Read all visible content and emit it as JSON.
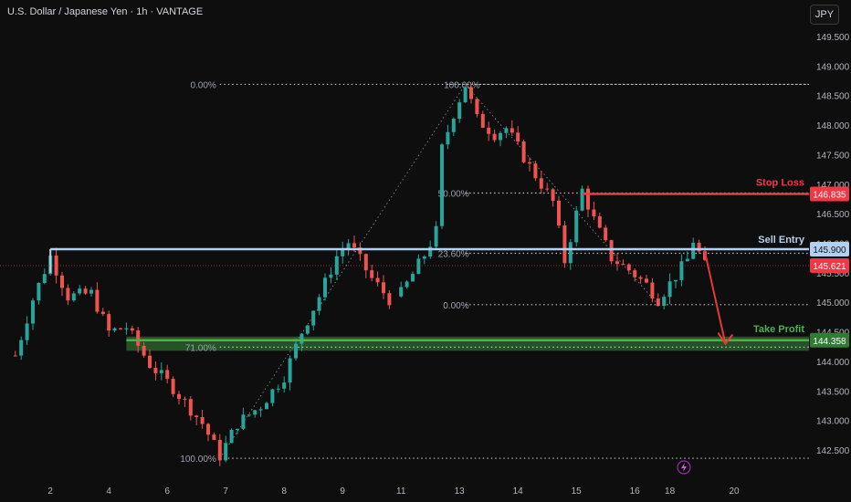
{
  "header": {
    "title": "U.S. Dollar / Japanese Yen · 1h · VANTAGE",
    "currency_button": "JPY"
  },
  "colors": {
    "background": "#0e0e0e",
    "up": "#26a69a",
    "down": "#ef5350",
    "stop": "#f23645",
    "entry": "#b2d0f0",
    "target": "#4caf50",
    "fib": "#b8bcc8",
    "arrow": "#e53935"
  },
  "chart_data": {
    "type": "candlestick",
    "symbol": "U.S. Dollar / Japanese Yen",
    "interval": "1h",
    "broker": "VANTAGE",
    "y_axis": {
      "range": [
        142.25,
        149.85
      ],
      "ticks": [
        "149.500",
        "149.000",
        "148.500",
        "148.000",
        "147.500",
        "147.000",
        "146.500",
        "146.000",
        "145.500",
        "145.000",
        "144.500",
        "144.000",
        "143.500",
        "143.000",
        "142.500"
      ],
      "tick_values": [
        149.5,
        149.0,
        148.5,
        148.0,
        147.5,
        147.0,
        146.5,
        146.0,
        145.5,
        145.0,
        144.5,
        144.0,
        143.5,
        143.0,
        142.5
      ]
    },
    "x_axis": {
      "labels": [
        "2",
        "4",
        "6",
        "7",
        "8",
        "9",
        "11",
        "13",
        "14",
        "15",
        "16",
        "18",
        "20"
      ],
      "label_index": [
        6,
        16,
        26,
        36,
        46,
        56,
        66,
        76,
        86,
        96,
        106,
        112,
        123
      ]
    },
    "index_range": [
      -2,
      134
    ],
    "levels": [
      {
        "name": "Stop Loss",
        "value": 146.835,
        "label": "146.835"
      },
      {
        "name": "Sell Entry",
        "value": 145.9,
        "label": "145.900"
      },
      {
        "name": "Take Profit",
        "value": 144.358,
        "label": "144.358"
      },
      {
        "name": "Current price",
        "value": 145.621,
        "label": "145.621"
      }
    ],
    "fib_retracement_1": [
      {
        "label": "0.00%",
        "value": 148.69
      },
      {
        "label": "71.00%",
        "value": 144.24
      },
      {
        "label": "100.00%",
        "value": 142.36
      }
    ],
    "fib_retracement_2": [
      {
        "label": "100.00%",
        "value": 148.69
      },
      {
        "label": "50.00%",
        "value": 146.85
      },
      {
        "label": "23.60%",
        "value": 145.83
      },
      {
        "label": "0.00%",
        "value": 144.96
      }
    ],
    "take_profit_zone": [
      144.18,
      144.42
    ],
    "anchors": [
      {
        "i": 0,
        "v": 144.1
      },
      {
        "i": 3,
        "v": 145.05
      },
      {
        "i": 6,
        "v": 145.78
      },
      {
        "i": 9,
        "v": 145.1
      },
      {
        "i": 13,
        "v": 145.15
      },
      {
        "i": 16,
        "v": 144.5
      },
      {
        "i": 19,
        "v": 144.58
      },
      {
        "i": 23,
        "v": 143.95
      },
      {
        "i": 27,
        "v": 143.55
      },
      {
        "i": 32,
        "v": 142.95
      },
      {
        "i": 35,
        "v": 142.4
      },
      {
        "i": 38,
        "v": 142.95
      },
      {
        "i": 42,
        "v": 143.25
      },
      {
        "i": 46,
        "v": 143.75
      },
      {
        "i": 49,
        "v": 144.5
      },
      {
        "i": 52,
        "v": 145.1
      },
      {
        "i": 55,
        "v": 145.78
      },
      {
        "i": 57,
        "v": 146.02
      },
      {
        "i": 61,
        "v": 145.4
      },
      {
        "i": 64,
        "v": 145.05
      },
      {
        "i": 66,
        "v": 145.15
      },
      {
        "i": 70,
        "v": 145.8
      },
      {
        "i": 72,
        "v": 146.2
      },
      {
        "i": 73,
        "v": 147.6
      },
      {
        "i": 75,
        "v": 148.2
      },
      {
        "i": 77,
        "v": 148.68
      },
      {
        "i": 79,
        "v": 148.1
      },
      {
        "i": 82,
        "v": 147.85
      },
      {
        "i": 84,
        "v": 147.95
      },
      {
        "i": 88,
        "v": 147.3
      },
      {
        "i": 92,
        "v": 146.7
      },
      {
        "i": 94,
        "v": 145.7
      },
      {
        "i": 96,
        "v": 146.5
      },
      {
        "i": 97,
        "v": 146.9
      },
      {
        "i": 99,
        "v": 146.4
      },
      {
        "i": 102,
        "v": 145.75
      },
      {
        "i": 105,
        "v": 145.55
      },
      {
        "i": 108,
        "v": 145.3
      },
      {
        "i": 110,
        "v": 145.05
      },
      {
        "i": 113,
        "v": 145.45
      },
      {
        "i": 115,
        "v": 145.72
      },
      {
        "i": 116,
        "v": 146.05
      },
      {
        "i": 118,
        "v": 145.62
      }
    ],
    "gap": [
      64,
      66
    ],
    "projection_arrow": {
      "from": {
        "i": 118,
        "v": 145.85
      },
      "to": {
        "i": 121.5,
        "v": 144.3
      }
    }
  }
}
